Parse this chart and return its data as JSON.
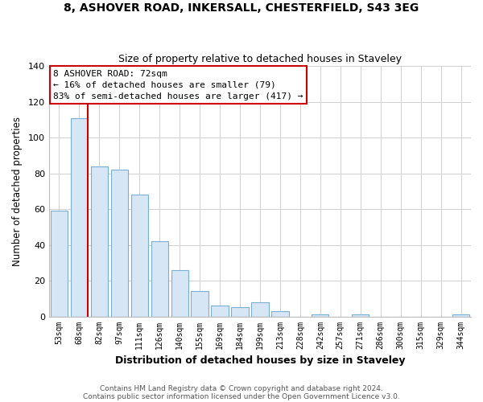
{
  "title1": "8, ASHOVER ROAD, INKERSALL, CHESTERFIELD, S43 3EG",
  "title2": "Size of property relative to detached houses in Staveley",
  "xlabel": "Distribution of detached houses by size in Staveley",
  "ylabel": "Number of detached properties",
  "bar_labels": [
    "53sqm",
    "68sqm",
    "82sqm",
    "97sqm",
    "111sqm",
    "126sqm",
    "140sqm",
    "155sqm",
    "169sqm",
    "184sqm",
    "199sqm",
    "213sqm",
    "228sqm",
    "242sqm",
    "257sqm",
    "271sqm",
    "286sqm",
    "300sqm",
    "315sqm",
    "329sqm",
    "344sqm"
  ],
  "bar_values": [
    59,
    111,
    84,
    82,
    68,
    42,
    26,
    14,
    6,
    5,
    8,
    3,
    0,
    1,
    0,
    1,
    0,
    0,
    0,
    0,
    1
  ],
  "bar_facecolor": "#d6e6f5",
  "bar_edgecolor": "#7aafd4",
  "vline_color": "#cc0000",
  "annotation_title": "8 ASHOVER ROAD: 72sqm",
  "annotation_line1": "← 16% of detached houses are smaller (79)",
  "annotation_line2": "83% of semi-detached houses are larger (417) →",
  "annotation_box_color": "#ffffff",
  "annotation_box_edgecolor": "#cc0000",
  "ylim": [
    0,
    140
  ],
  "yticks": [
    0,
    20,
    40,
    60,
    80,
    100,
    120,
    140
  ],
  "footer1": "Contains HM Land Registry data © Crown copyright and database right 2024.",
  "footer2": "Contains public sector information licensed under the Open Government Licence v3.0.",
  "background_color": "#ffffff",
  "grid_color": "#d0d0d0"
}
